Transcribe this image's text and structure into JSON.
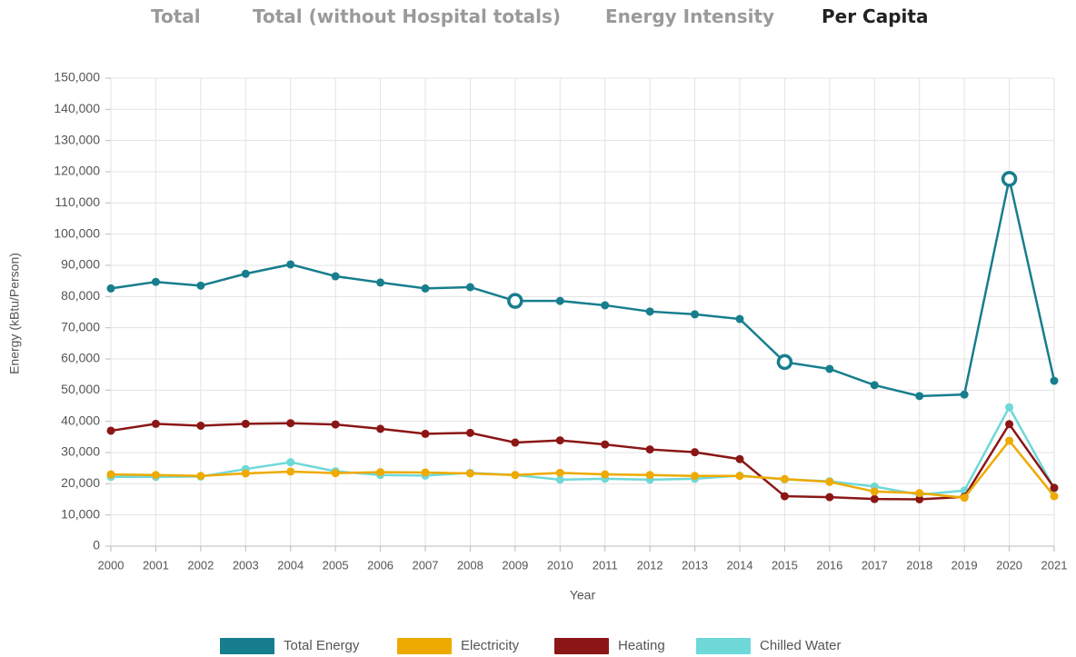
{
  "tabs": [
    "Total",
    "Total (without Hospital totals)",
    "Energy Intensity",
    "Per Capita"
  ],
  "active_tab": 3,
  "chart_data": {
    "type": "line",
    "y_label": "Energy (kBtu/Person)",
    "x_label": "Year",
    "x": [
      2000,
      2001,
      2002,
      2003,
      2004,
      2005,
      2006,
      2007,
      2008,
      2009,
      2010,
      2011,
      2012,
      2013,
      2014,
      2015,
      2016,
      2017,
      2018,
      2019,
      2020,
      2021
    ],
    "xlim": [
      2000,
      2021
    ],
    "xticks": [
      2000,
      2001,
      2002,
      2003,
      2004,
      2005,
      2006,
      2007,
      2008,
      2009,
      2010,
      2011,
      2012,
      2013,
      2014,
      2015,
      2016,
      2017,
      2018,
      2019,
      2020,
      2021
    ],
    "ylim": [
      0,
      150000
    ],
    "yticks": [
      0,
      {
        "value": 10000,
        "label": "10,000"
      },
      {
        "value": 20000,
        "label": "20,000"
      },
      {
        "value": 30000,
        "label": "30,000"
      },
      {
        "value": 40000,
        "label": "40,000"
      },
      {
        "value": 50000,
        "label": "50,000"
      },
      {
        "value": 60000,
        "label": "60,000"
      },
      {
        "value": 70000,
        "label": "70,000"
      },
      {
        "value": 80000,
        "label": "80,000"
      },
      {
        "value": 90000,
        "label": "90,000"
      },
      {
        "value": 100000,
        "label": "100,000"
      },
      {
        "value": 110000,
        "label": "110,000"
      },
      {
        "value": 120000,
        "label": "120,000"
      },
      {
        "value": 130000,
        "label": "130,000"
      },
      {
        "value": 140000,
        "label": "140,000"
      },
      {
        "value": 150000,
        "label": "150,000"
      }
    ],
    "grid": true,
    "legend": "bottom",
    "highlighted_x": [
      2009,
      2015,
      2020
    ],
    "series": [
      {
        "name": "Total Energy",
        "color": "#177e8e",
        "values": [
          82600,
          84700,
          83500,
          87300,
          90300,
          86500,
          84500,
          82600,
          83000,
          78600,
          78600,
          77200,
          75200,
          74300,
          72800,
          59000,
          56800,
          51600,
          48100,
          48600,
          117700,
          53000
        ]
      },
      {
        "name": "Electricity",
        "color": "#eeaa00",
        "values": [
          23000,
          22800,
          22500,
          23300,
          23900,
          23400,
          23700,
          23600,
          23300,
          22800,
          23500,
          23000,
          22800,
          22500,
          22500,
          21500,
          20600,
          17500,
          17000,
          15500,
          33800,
          16000
        ]
      },
      {
        "name": "Heating",
        "color": "#8b1616",
        "values": [
          37000,
          39200,
          38600,
          39200,
          39400,
          39000,
          37600,
          36000,
          36300,
          33200,
          33900,
          32600,
          31000,
          30100,
          27900,
          16000,
          15700,
          15100,
          15000,
          15800,
          39100,
          18700
        ]
      },
      {
        "name": "Chilled Water",
        "color": "#6fd8d8",
        "values": [
          22200,
          22200,
          22300,
          24700,
          26900,
          24000,
          22800,
          22600,
          23500,
          22800,
          21300,
          21600,
          21300,
          21600,
          22600,
          21400,
          20800,
          19100,
          16500,
          17800,
          44500,
          18500
        ]
      }
    ]
  }
}
